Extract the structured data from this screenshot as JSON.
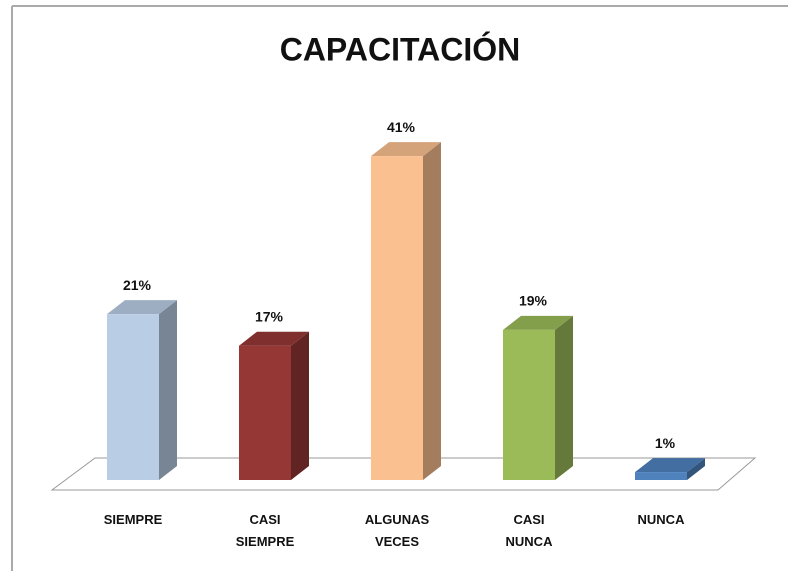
{
  "chart_data": {
    "type": "bar3d",
    "title": "CAPACITACIÓN",
    "categories": [
      "SIEMPRE",
      "CASI SIEMPRE",
      "ALGUNAS VECES",
      "CASI NUNCA",
      "NUNCA"
    ],
    "values": [
      21,
      17,
      41,
      19,
      1
    ],
    "value_labels": [
      "21%",
      "17%",
      "41%",
      "19%",
      "1%"
    ],
    "colors": [
      "#b9cde5",
      "#953735",
      "#fac090",
      "#9bbb59",
      "#4f81bd"
    ]
  }
}
